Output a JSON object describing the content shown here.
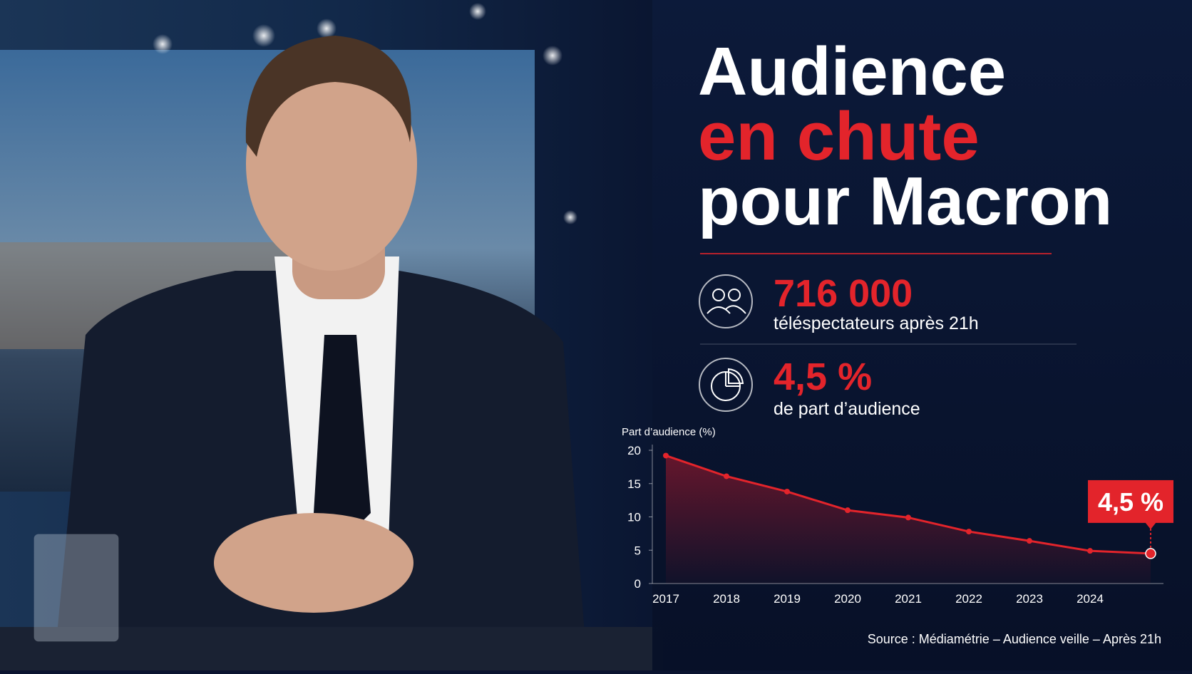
{
  "headline": {
    "line1": "Audience",
    "line2": "en chute",
    "line3": "pour Macron"
  },
  "stats": [
    {
      "value": "716 000",
      "label": "téléspectateurs après 21h"
    },
    {
      "value": "4,5 %",
      "label": "de part d’audience"
    }
  ],
  "source": "Source : Médiamétrie – Audience veille – Après 21h",
  "chart_data": {
    "type": "line",
    "y_label": "Part d’audience (%)",
    "categories": [
      "2017",
      "2018",
      "2019",
      "2020",
      "2021",
      "2022",
      "2023",
      "2024",
      null
    ],
    "series": [
      {
        "color": "#e3242b",
        "values": [
          19.2,
          16.1,
          13.8,
          11,
          9.9,
          7.8,
          6.4,
          4.9,
          4.5
        ],
        "value_labels": [
          null,
          null,
          null,
          null,
          null,
          null,
          null,
          null,
          "4,5 %"
        ]
      }
    ],
    "ylim": [
      0,
      20
    ],
    "yticks": [
      0,
      5,
      10,
      15,
      20
    ]
  }
}
